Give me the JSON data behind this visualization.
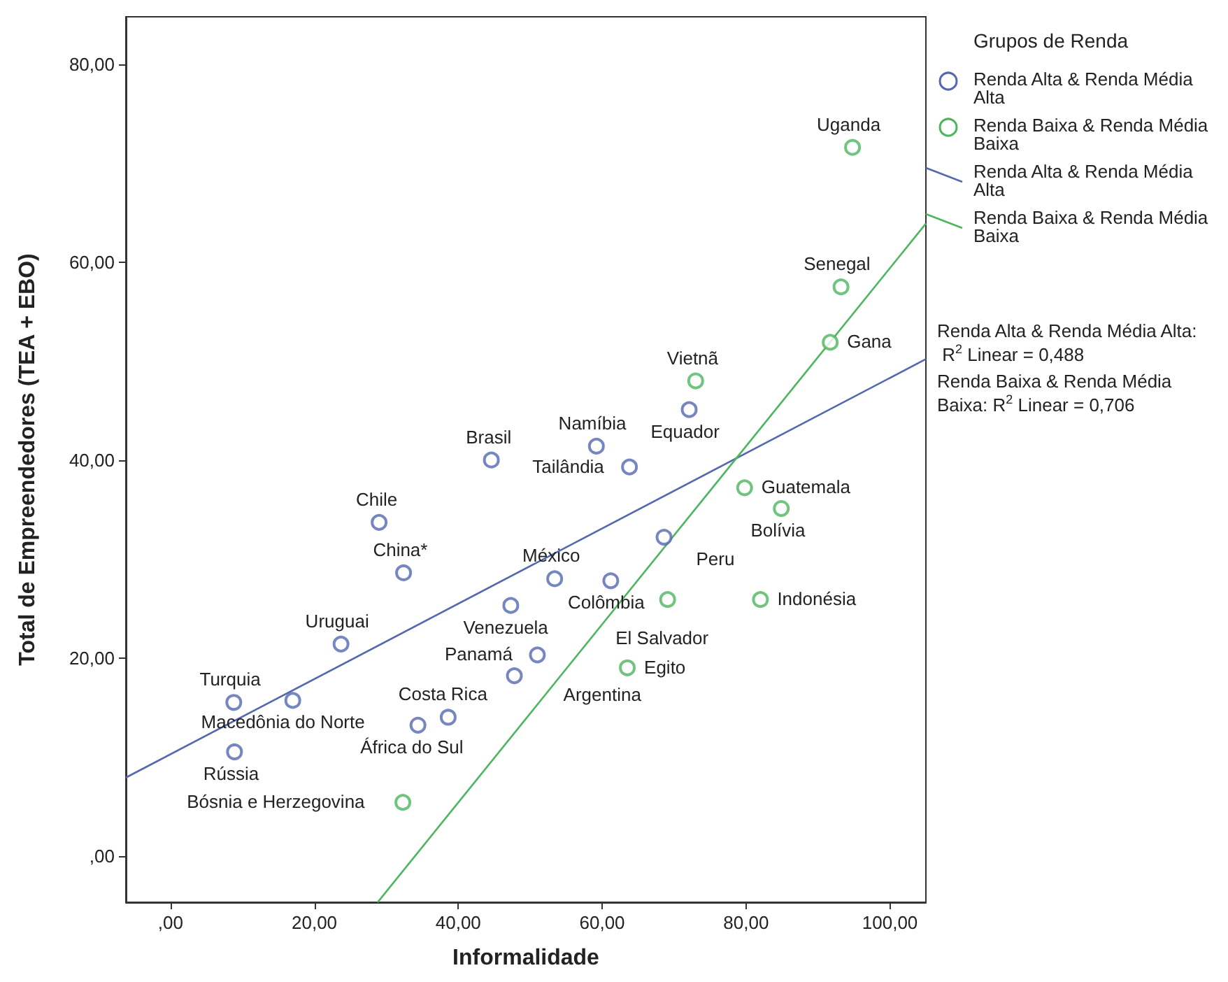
{
  "chart_data": {
    "type": "scatter",
    "xlabel": "Informalidade",
    "ylabel": "Total de Empreendedores (TEA + EBO)",
    "legend_title": "Grupos de Renda",
    "legend": "right",
    "line_style": "solid",
    "grid": false,
    "xlim": [
      -6.2,
      105
    ],
    "ylim": [
      -4.7,
      84.8
    ],
    "xticks": [
      {
        "value": 0,
        "label": ",00"
      },
      {
        "value": 20,
        "label": "20,00"
      },
      {
        "value": 40,
        "label": "40,00"
      },
      {
        "value": 60,
        "label": "60,00"
      },
      {
        "value": 80,
        "label": "80,00"
      },
      {
        "value": 100,
        "label": "100,00"
      }
    ],
    "yticks": [
      {
        "value": 0,
        "label": ",00"
      },
      {
        "value": 20,
        "label": "20,00"
      },
      {
        "value": 40,
        "label": "40,00"
      },
      {
        "value": 60,
        "label": "60,00"
      },
      {
        "value": 80,
        "label": "80,00"
      }
    ],
    "series": [
      {
        "name": "Renda Alta & Renda Média Alta",
        "color": "#5468b0",
        "type": "scatter",
        "x": [
          29.0,
          32.4,
          47.3,
          23.7,
          51.0,
          47.8,
          8.8,
          17.0,
          8.9,
          34.4,
          38.6,
          72.1,
          59.2,
          63.8,
          68.6,
          53.4,
          61.2,
          44.6
        ],
        "values": [
          33.7,
          28.6,
          25.3,
          21.4,
          20.3,
          18.2,
          15.5,
          15.7,
          10.5,
          13.2,
          14.0,
          45.1,
          41.4,
          39.3,
          32.2,
          28.0,
          27.8,
          40.0
        ]
      },
      {
        "name": "Renda Baixa & Renda Média Baixa",
        "color": "#4cb55e",
        "type": "scatter",
        "x": [
          32.3,
          73.0,
          79.8,
          84.9,
          69.1,
          82.0,
          63.5,
          91.7,
          93.2,
          94.8
        ],
        "values": [
          5.4,
          48.0,
          37.2,
          35.1,
          25.9,
          25.9,
          19.0,
          51.9,
          57.5,
          71.6
        ]
      },
      {
        "name": "Renda Alta & Renda Média Alta",
        "color": "#5468b0",
        "type": "line",
        "x": [
          -6.2,
          105
        ],
        "values": [
          7.9,
          50.2
        ]
      },
      {
        "name": "Renda Baixa & Renda Média Baixa",
        "color": "#4cb55e",
        "type": "line",
        "x": [
          28.8,
          105
        ],
        "values": [
          -4.7,
          63.9
        ]
      }
    ],
    "annotations": [
      {
        "text": "Chile",
        "x": 29.0,
        "y": 33.7
      },
      {
        "text": "China*",
        "x": 32.4,
        "y": 28.6
      },
      {
        "text": "Venezuela",
        "x": 47.3,
        "y": 25.3
      },
      {
        "text": "Uruguai",
        "x": 23.7,
        "y": 21.4
      },
      {
        "text": "Panamá",
        "x": 51.0,
        "y": 20.3
      },
      {
        "text": "Argentina",
        "x": 47.8,
        "y": 18.2
      },
      {
        "text": "Turquia",
        "x": 8.8,
        "y": 15.5
      },
      {
        "text": "Macedônia do Norte",
        "x": 17.0,
        "y": 15.7
      },
      {
        "text": "Rússia",
        "x": 8.9,
        "y": 10.5
      },
      {
        "text": "África do Sul",
        "x": 34.4,
        "y": 13.2
      },
      {
        "text": "Costa Rica",
        "x": 38.6,
        "y": 14.0
      },
      {
        "text": "Equador",
        "x": 72.1,
        "y": 45.1
      },
      {
        "text": "Namíbia",
        "x": 59.2,
        "y": 41.4
      },
      {
        "text": "Tailândia",
        "x": 63.8,
        "y": 39.3
      },
      {
        "text": "Peru",
        "x": 68.6,
        "y": 32.2
      },
      {
        "text": "México",
        "x": 53.4,
        "y": 28.0
      },
      {
        "text": "Colômbia",
        "x": 61.2,
        "y": 27.8
      },
      {
        "text": "Brasil",
        "x": 44.6,
        "y": 40.0
      },
      {
        "text": "Bósnia e Herzegovina",
        "x": 32.3,
        "y": 5.4
      },
      {
        "text": "Vietnã",
        "x": 73.0,
        "y": 48.0
      },
      {
        "text": "Guatemala",
        "x": 79.8,
        "y": 37.2
      },
      {
        "text": "Bolívia",
        "x": 84.9,
        "y": 35.1
      },
      {
        "text": "El Salvador",
        "x": 69.1,
        "y": 25.9
      },
      {
        "text": "Indonésia",
        "x": 82.0,
        "y": 25.9
      },
      {
        "text": "Egito",
        "x": 63.5,
        "y": 19.0
      },
      {
        "text": "Gana",
        "x": 91.7,
        "y": 51.9
      },
      {
        "text": "Senegal",
        "x": 93.2,
        "y": 57.5
      },
      {
        "text": "Uganda",
        "x": 94.8,
        "y": 71.6
      },
      "Renda Alta & Renda Média Alta: R$^{2}$ Linear = 0,488",
      "Renda Baixa & Renda Média Baixa: R$^{2}$ Linear = 0,706"
    ]
  }
}
